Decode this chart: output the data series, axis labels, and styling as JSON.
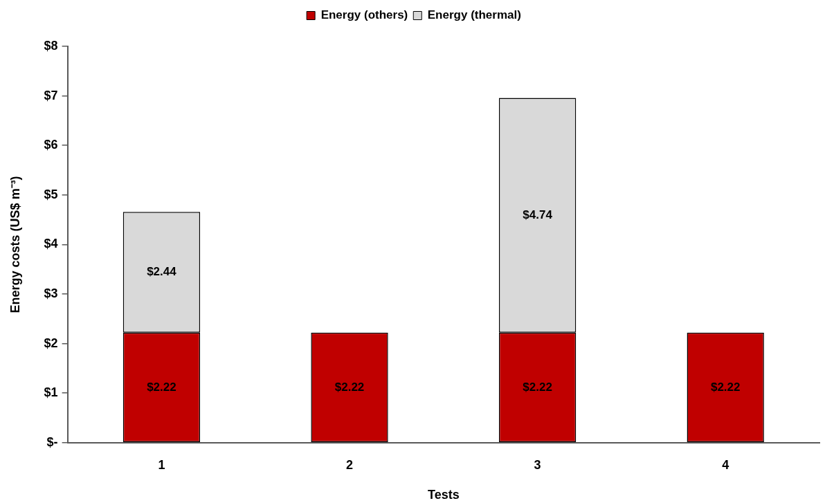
{
  "chart_data": {
    "type": "bar",
    "stacked": true,
    "legend": "top",
    "grid": false,
    "xlabel": "Tests",
    "ylabel": "Energy costs (US$ m⁻³)",
    "categories": [
      "1",
      "2",
      "3",
      "4"
    ],
    "ylim": [
      0,
      8
    ],
    "yticks": [
      {
        "value": 0,
        "label": "$-"
      },
      {
        "value": 1,
        "label": "$1"
      },
      {
        "value": 2,
        "label": "$2"
      },
      {
        "value": 3,
        "label": "$3"
      },
      {
        "value": 4,
        "label": "$4"
      },
      {
        "value": 5,
        "label": "$5"
      },
      {
        "value": 6,
        "label": "$6"
      },
      {
        "value": 7,
        "label": "$7"
      },
      {
        "value": 8,
        "label": "$8"
      }
    ],
    "series": [
      {
        "name": "Energy (others)",
        "color": "#c00000",
        "values": [
          2.22,
          2.22,
          2.22,
          2.22
        ],
        "value_labels": [
          "$2.22",
          "$2.22",
          "$2.22",
          "$2.22"
        ]
      },
      {
        "name": "Energy (thermal)",
        "color": "#d9d9d9",
        "values": [
          2.44,
          null,
          4.74,
          null
        ],
        "value_labels": [
          "$2.44",
          null,
          "$4.74",
          null
        ]
      }
    ]
  }
}
